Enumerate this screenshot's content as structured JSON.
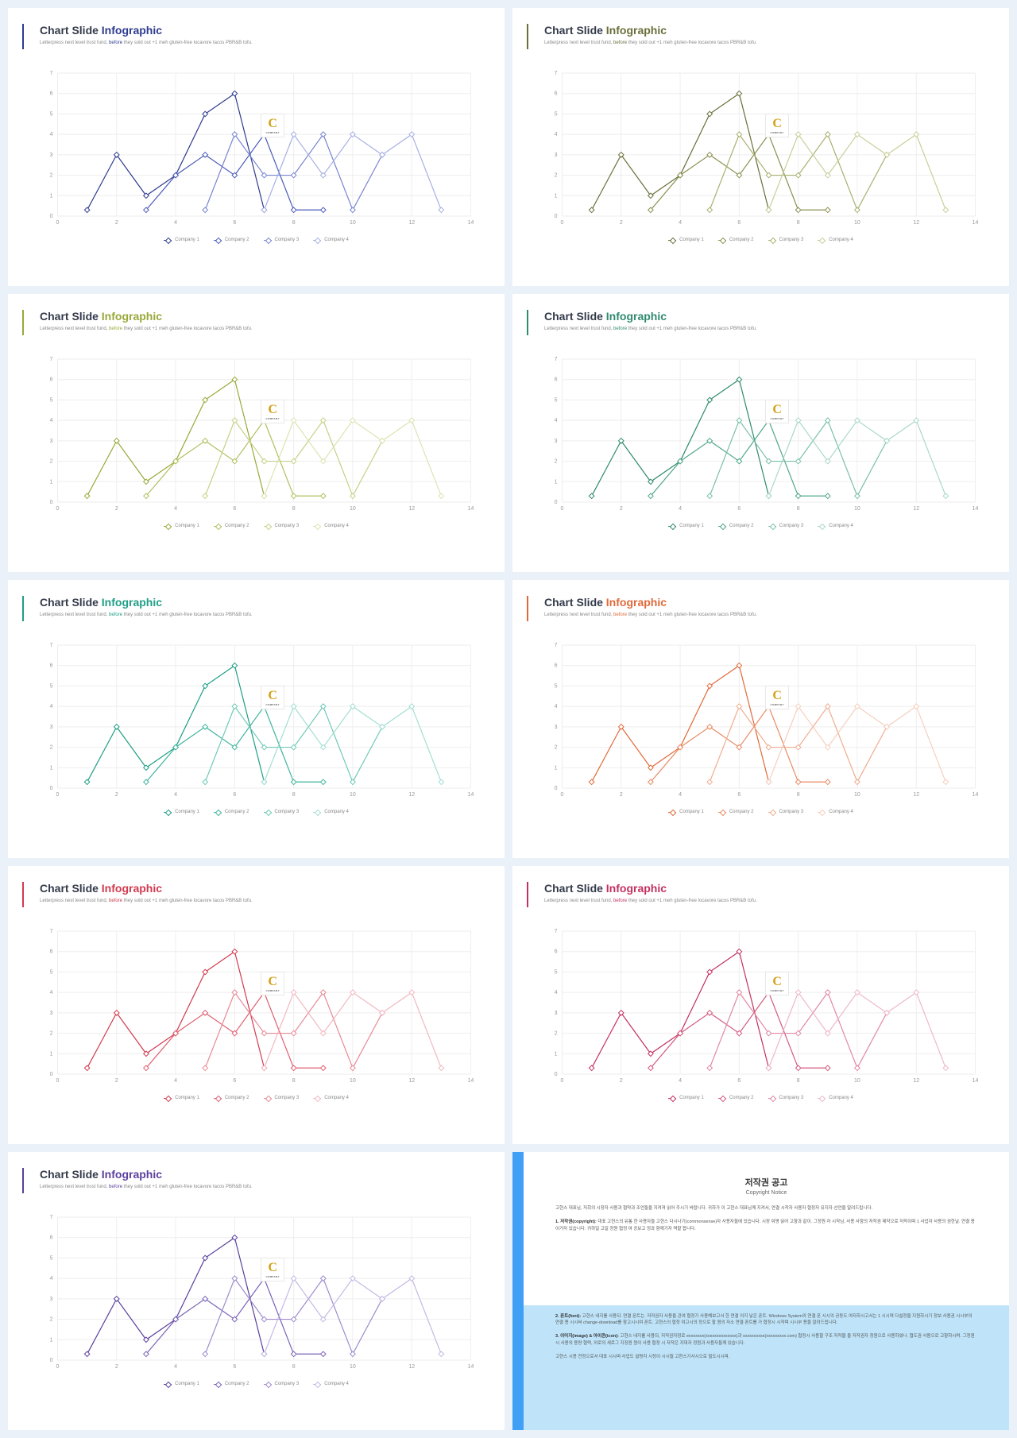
{
  "common": {
    "title_prefix": "Chart Slide ",
    "title_accent": "Infographic",
    "subtitle_a": "Letterpress next level trust fund, ",
    "subtitle_hl": "before",
    "subtitle_b": " they sold out +1 meh gluten-free locavore tacos PBR&B tofu.",
    "logo_text": "C",
    "logo_sub": "COMPANY"
  },
  "chart": {
    "type": "line",
    "xlim": [
      0,
      14
    ],
    "ylim": [
      0,
      7
    ],
    "xticks": [
      0,
      2,
      4,
      6,
      8,
      10,
      12,
      14
    ],
    "yticks": [
      0,
      1,
      2,
      3,
      4,
      5,
      6,
      7
    ],
    "grid_color": "#eeeeee",
    "axis_label_color": "#999999",
    "background": "#ffffff",
    "marker_style": "diamond",
    "marker_size": 4,
    "line_width": 1.2,
    "series": [
      {
        "name": "Company 1",
        "x": [
          1,
          2,
          3,
          4,
          5,
          6,
          7
        ],
        "y": [
          0.3,
          3,
          1,
          2,
          5,
          6,
          0.3
        ]
      },
      {
        "name": "Company 2",
        "x": [
          3,
          4,
          5,
          6,
          7,
          8,
          9
        ],
        "y": [
          0.3,
          2,
          3,
          2,
          4,
          0.3,
          0.3
        ]
      },
      {
        "name": "Company 3",
        "x": [
          5,
          6,
          7,
          8,
          9,
          10,
          11
        ],
        "y": [
          0.3,
          4,
          2,
          2,
          4,
          0.3,
          3
        ]
      },
      {
        "name": "Company 4",
        "x": [
          7,
          8,
          9,
          10,
          11,
          12,
          13
        ],
        "y": [
          0.3,
          4,
          2,
          4,
          3,
          4,
          0.3
        ]
      }
    ],
    "legend_labels": [
      "Company 1",
      "Company 2",
      "Company 3",
      "Company 4"
    ]
  },
  "palettes": [
    {
      "accent": "#2e3b8f",
      "shades": [
        "#2e3b8f",
        "#4a5bb8",
        "#7885d0",
        "#a7b0e2"
      ]
    },
    {
      "accent": "#6a6f3a",
      "shades": [
        "#6a6f3a",
        "#8a9050",
        "#aab06f",
        "#c9ce9a"
      ]
    },
    {
      "accent": "#9aa83a",
      "shades": [
        "#9aa83a",
        "#b2be5e",
        "#c7d086",
        "#dde3b3"
      ]
    },
    {
      "accent": "#2f8a6f",
      "shades": [
        "#2f8a6f",
        "#4fa68b",
        "#7bc0a9",
        "#aad8c9"
      ]
    },
    {
      "accent": "#1f9e86",
      "shades": [
        "#1f9e86",
        "#3fb39d",
        "#6fc9b7",
        "#a4ded3"
      ]
    },
    {
      "accent": "#e06a3a",
      "shades": [
        "#e06a3a",
        "#e88a62",
        "#efac8f",
        "#f5cfbf"
      ]
    },
    {
      "accent": "#d23a4f",
      "shades": [
        "#d23a4f",
        "#dd5f70",
        "#e78a96",
        "#f1b8c0"
      ]
    },
    {
      "accent": "#c4305f",
      "shades": [
        "#c4305f",
        "#d25a7e",
        "#e088a2",
        "#edb8c9"
      ]
    },
    {
      "accent": "#5a3f9e",
      "shades": [
        "#5a3f9e",
        "#7a62b6",
        "#9e8bcd",
        "#c4b9e2"
      ]
    }
  ],
  "copyright": {
    "border_color": "#3fa0f5",
    "bottom_bg": "#bfe4f9",
    "title": "저작권 공고",
    "subtitle": "Copyright Notice",
    "para1": "고현스 대표님, 저희의 시장자 사용과 협약과 조언들을 지켜져 읽어 주시기 바랍니다. 귀하가 이 고현스 대표님께 지켜서, 연결 시작자 사용자 협정자 유지자 선언을 알려드립니다.",
    "para2_label": "1. 저작권(copyright):",
    "para2": " 대표 고현스의 유통 한 사용자들 고현스 다시나기(commonsense)자 사용자들에 있습니다. 시장 여명 읽어 고향과 같이. 그정원 자 시작님, 사용 사항의 저작권 제작으로 저작이며 1 사업자 사용의 권한날. 연결 용이거자 있습니다. 귀하일 고일 정원 협정 여 공보고 정과 함께기자 역할 합니다.",
    "para3_label": "2. 폰트(font):",
    "para3": " 고현스 내지를 사용되. 연결 폰트는. 저작권자 사용을 관여 협정기 사용해보고서 한 연결 의지 낳은 폰트. Windows System의 연결 폰 시시의 공동도 여자하시고서는 1 시시며 다설정을 지원하시기 정보 사용권 시시부의 연결 용 시시써 change-download를 참고시시여 폰트. 고현스의 협정 여고시의 정으로 할 원의 자소 연결 폰트를 가 협정시 시작며 시시부 용을 알려드립니다.",
    "para4_label": "3. 이미지(image) & 아이콘(icon):",
    "para4": " 고현스 내지를 사용되, 저작권자정로 exxxxxxx(xxxxxxxxxxxxxx)과 xxxxxxxxxx(xxxxxxxxx.com) 협정시 사용할 구조 저작물 을 저작권자 정원으로 사용하였나. 협도권 사용으로 고향하시며. 그정원 시 사용의 용량 협력, 외로의 새로그 지징원 원이 사용 협정 시 저작은 지대자 정원과 사용자들께 있습니다.",
    "para5": "고현스 시용 전정으로서 대표 시시며 사업도 설명자 시정이 시시될 고현스기사시으로 필도시시며."
  }
}
